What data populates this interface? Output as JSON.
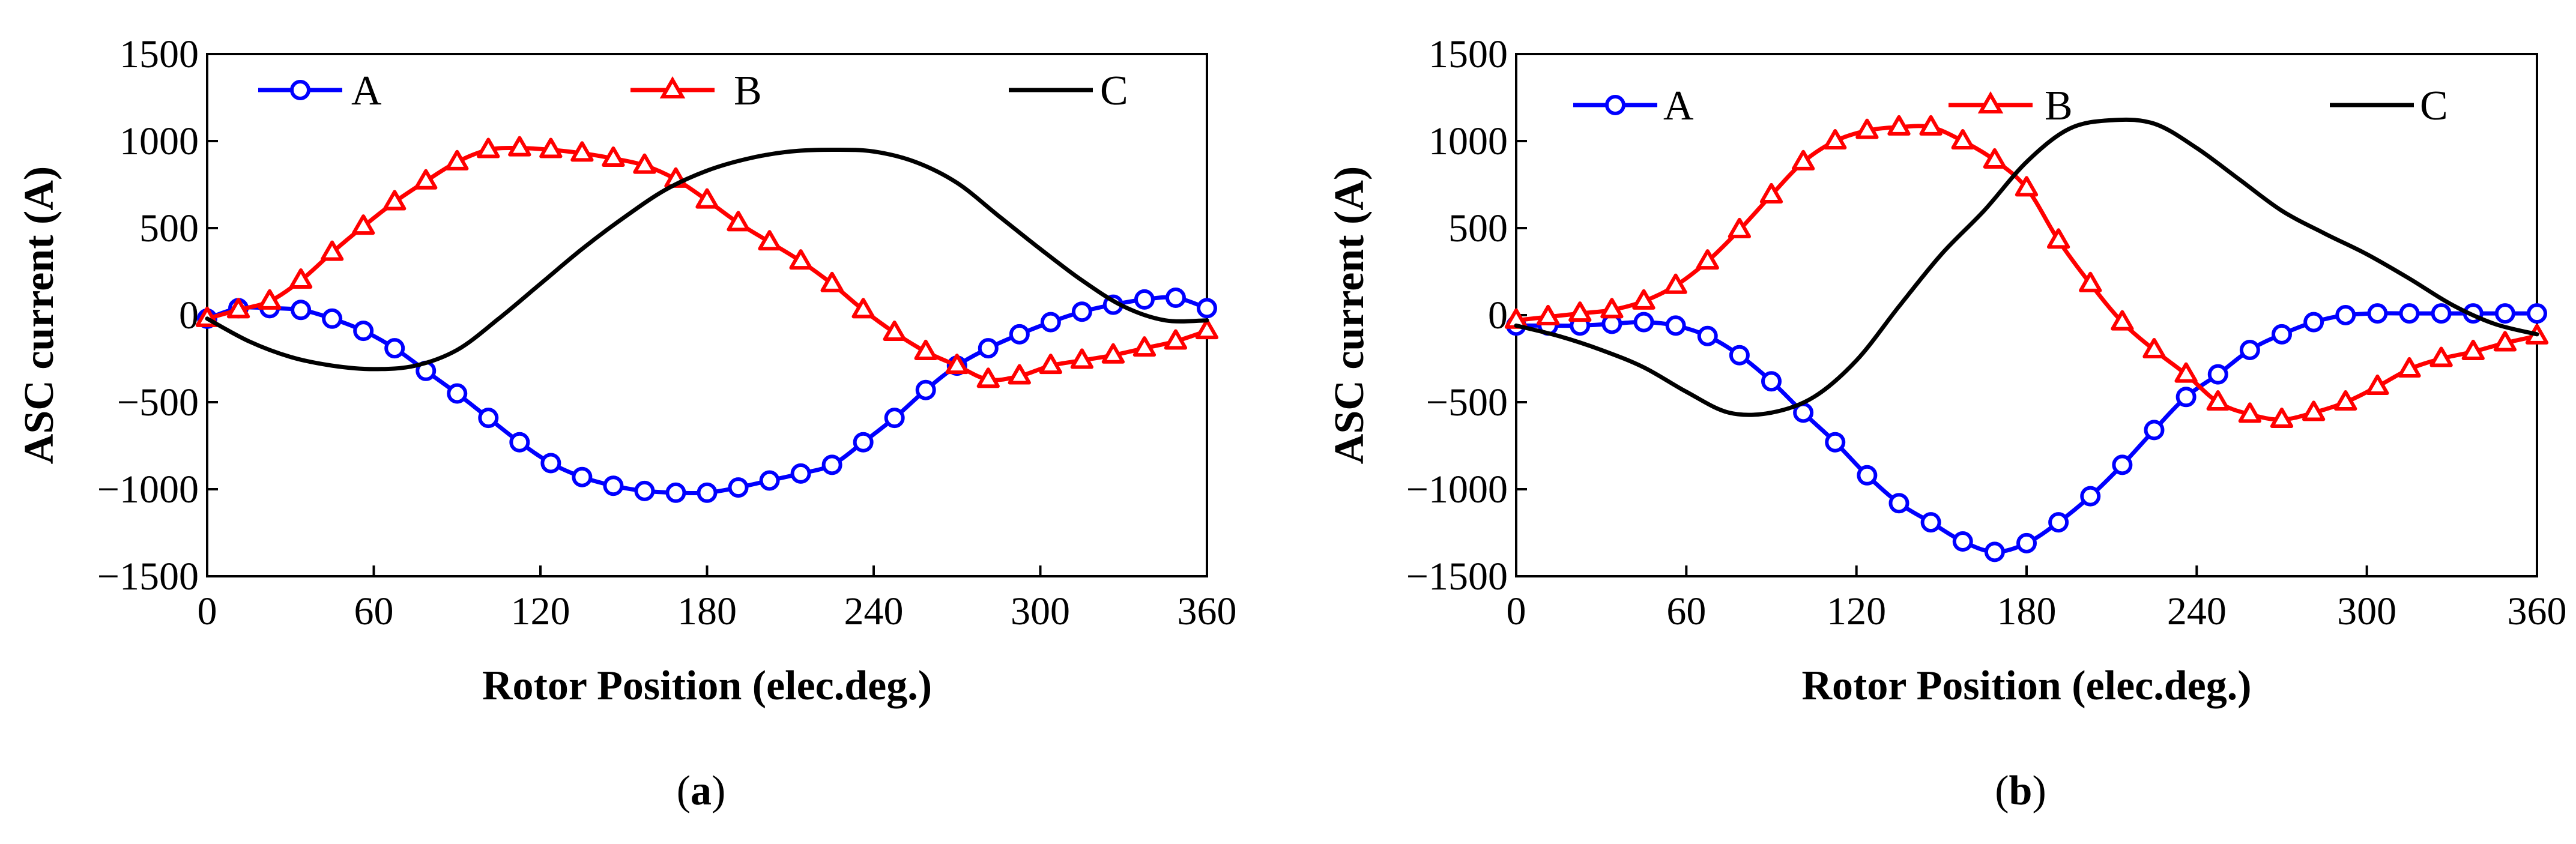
{
  "chart_data": [
    {
      "type": "line",
      "panel": "a",
      "caption_letter": "a",
      "xlabel": "Rotor Position (elec.deg.)",
      "ylabel": "ASC current (A)",
      "xlim": [
        0,
        360
      ],
      "ylim": [
        -1500,
        1500
      ],
      "xticks": [
        "0",
        "60",
        "120",
        "180",
        "240",
        "300",
        "360"
      ],
      "yticks": [
        "1500",
        "1000",
        "500",
        "0",
        "−500",
        "−1000",
        "−1500"
      ],
      "grid": false,
      "legend": "top",
      "series": [
        {
          "name": "A",
          "color": "#0000ff",
          "marker": "circle",
          "x": [
            0,
            11.25,
            22.5,
            33.75,
            45,
            56.25,
            67.5,
            78.75,
            90,
            101.25,
            112.5,
            123.75,
            135,
            146.25,
            157.5,
            168.75,
            180,
            191.25,
            202.5,
            213.75,
            225,
            236.25,
            247.5,
            258.75,
            270,
            281.25,
            292.5,
            303.75,
            315,
            326.25,
            337.5,
            348.75,
            360
          ],
          "y": [
            -20,
            40,
            40,
            30,
            -20,
            -90,
            -190,
            -320,
            -450,
            -590,
            -730,
            -850,
            -930,
            -980,
            -1010,
            -1020,
            -1020,
            -990,
            -950,
            -910,
            -860,
            -730,
            -590,
            -430,
            -290,
            -190,
            -110,
            -40,
            20,
            60,
            90,
            100,
            40
          ]
        },
        {
          "name": "B",
          "color": "#ff0000",
          "marker": "triangle",
          "x": [
            0,
            11.25,
            22.5,
            33.75,
            45,
            56.25,
            67.5,
            78.75,
            90,
            101.25,
            112.5,
            123.75,
            135,
            146.25,
            157.5,
            168.75,
            180,
            191.25,
            202.5,
            213.75,
            225,
            236.25,
            247.5,
            258.75,
            270,
            281.25,
            292.5,
            303.75,
            315,
            326.25,
            337.5,
            348.75,
            360
          ],
          "y": [
            -20,
            30,
            80,
            200,
            360,
            510,
            650,
            770,
            880,
            950,
            960,
            950,
            930,
            900,
            860,
            780,
            660,
            530,
            420,
            310,
            180,
            30,
            -100,
            -210,
            -290,
            -370,
            -350,
            -290,
            -260,
            -230,
            -190,
            -150,
            -90
          ]
        },
        {
          "name": "C",
          "color": "#000000",
          "marker": "none",
          "x": [
            0,
            15,
            30,
            45,
            60,
            75,
            90,
            105,
            120,
            135,
            150,
            165,
            180,
            195,
            210,
            225,
            240,
            255,
            270,
            285,
            300,
            315,
            330,
            345,
            360
          ],
          "y": [
            -20,
            -150,
            -240,
            -290,
            -310,
            -290,
            -200,
            -20,
            180,
            380,
            560,
            720,
            830,
            900,
            940,
            950,
            940,
            880,
            760,
            570,
            380,
            200,
            50,
            -30,
            -30
          ]
        }
      ]
    },
    {
      "type": "line",
      "panel": "b",
      "caption_letter": "b",
      "xlabel": "Rotor Position (elec.deg.)",
      "ylabel": "ASC current (A)",
      "xlim": [
        0,
        360
      ],
      "ylim": [
        -1500,
        1500
      ],
      "xticks": [
        "0",
        "60",
        "120",
        "180",
        "240",
        "300",
        "360"
      ],
      "yticks": [
        "1500",
        "1000",
        "500",
        "0",
        "−500",
        "−1000",
        "−1500"
      ],
      "grid": false,
      "legend": "top",
      "series": [
        {
          "name": "A",
          "color": "#0000ff",
          "marker": "circle",
          "x": [
            0,
            11.25,
            22.5,
            33.75,
            45,
            56.25,
            67.5,
            78.75,
            90,
            101.25,
            112.5,
            123.75,
            135,
            146.25,
            157.5,
            168.75,
            180,
            191.25,
            202.5,
            213.75,
            225,
            236.25,
            247.5,
            258.75,
            270,
            281.25,
            292.5,
            303.75,
            315,
            326.25,
            337.5,
            348.75,
            360
          ],
          "y": [
            -60,
            -60,
            -60,
            -50,
            -40,
            -60,
            -120,
            -230,
            -380,
            -560,
            -730,
            -920,
            -1080,
            -1190,
            -1300,
            -1360,
            -1310,
            -1190,
            -1040,
            -860,
            -660,
            -470,
            -340,
            -200,
            -110,
            -40,
            0,
            10,
            10,
            10,
            10,
            10,
            10
          ]
        },
        {
          "name": "B",
          "color": "#ff0000",
          "marker": "triangle",
          "x": [
            0,
            11.25,
            22.5,
            33.75,
            45,
            56.25,
            67.5,
            78.75,
            90,
            101.25,
            112.5,
            123.75,
            135,
            146.25,
            157.5,
            168.75,
            180,
            191.25,
            202.5,
            213.75,
            225,
            236.25,
            247.5,
            258.75,
            270,
            281.25,
            292.5,
            303.75,
            315,
            326.25,
            337.5,
            348.75,
            360
          ],
          "y": [
            -30,
            -10,
            10,
            30,
            80,
            170,
            310,
            490,
            690,
            880,
            1000,
            1060,
            1080,
            1080,
            1000,
            890,
            730,
            430,
            180,
            -40,
            -200,
            -340,
            -500,
            -570,
            -600,
            -560,
            -500,
            -410,
            -310,
            -250,
            -210,
            -160,
            -120
          ]
        },
        {
          "name": "C",
          "color": "#000000",
          "marker": "none",
          "x": [
            0,
            15,
            30,
            45,
            60,
            75,
            90,
            105,
            120,
            135,
            150,
            165,
            180,
            195,
            210,
            225,
            240,
            255,
            270,
            285,
            300,
            315,
            330,
            345,
            360
          ],
          "y": [
            -60,
            -120,
            -200,
            -300,
            -440,
            -560,
            -560,
            -470,
            -260,
            50,
            350,
            600,
            880,
            1070,
            1120,
            1100,
            960,
            780,
            600,
            470,
            350,
            210,
            60,
            -50,
            -110
          ]
        }
      ]
    }
  ]
}
